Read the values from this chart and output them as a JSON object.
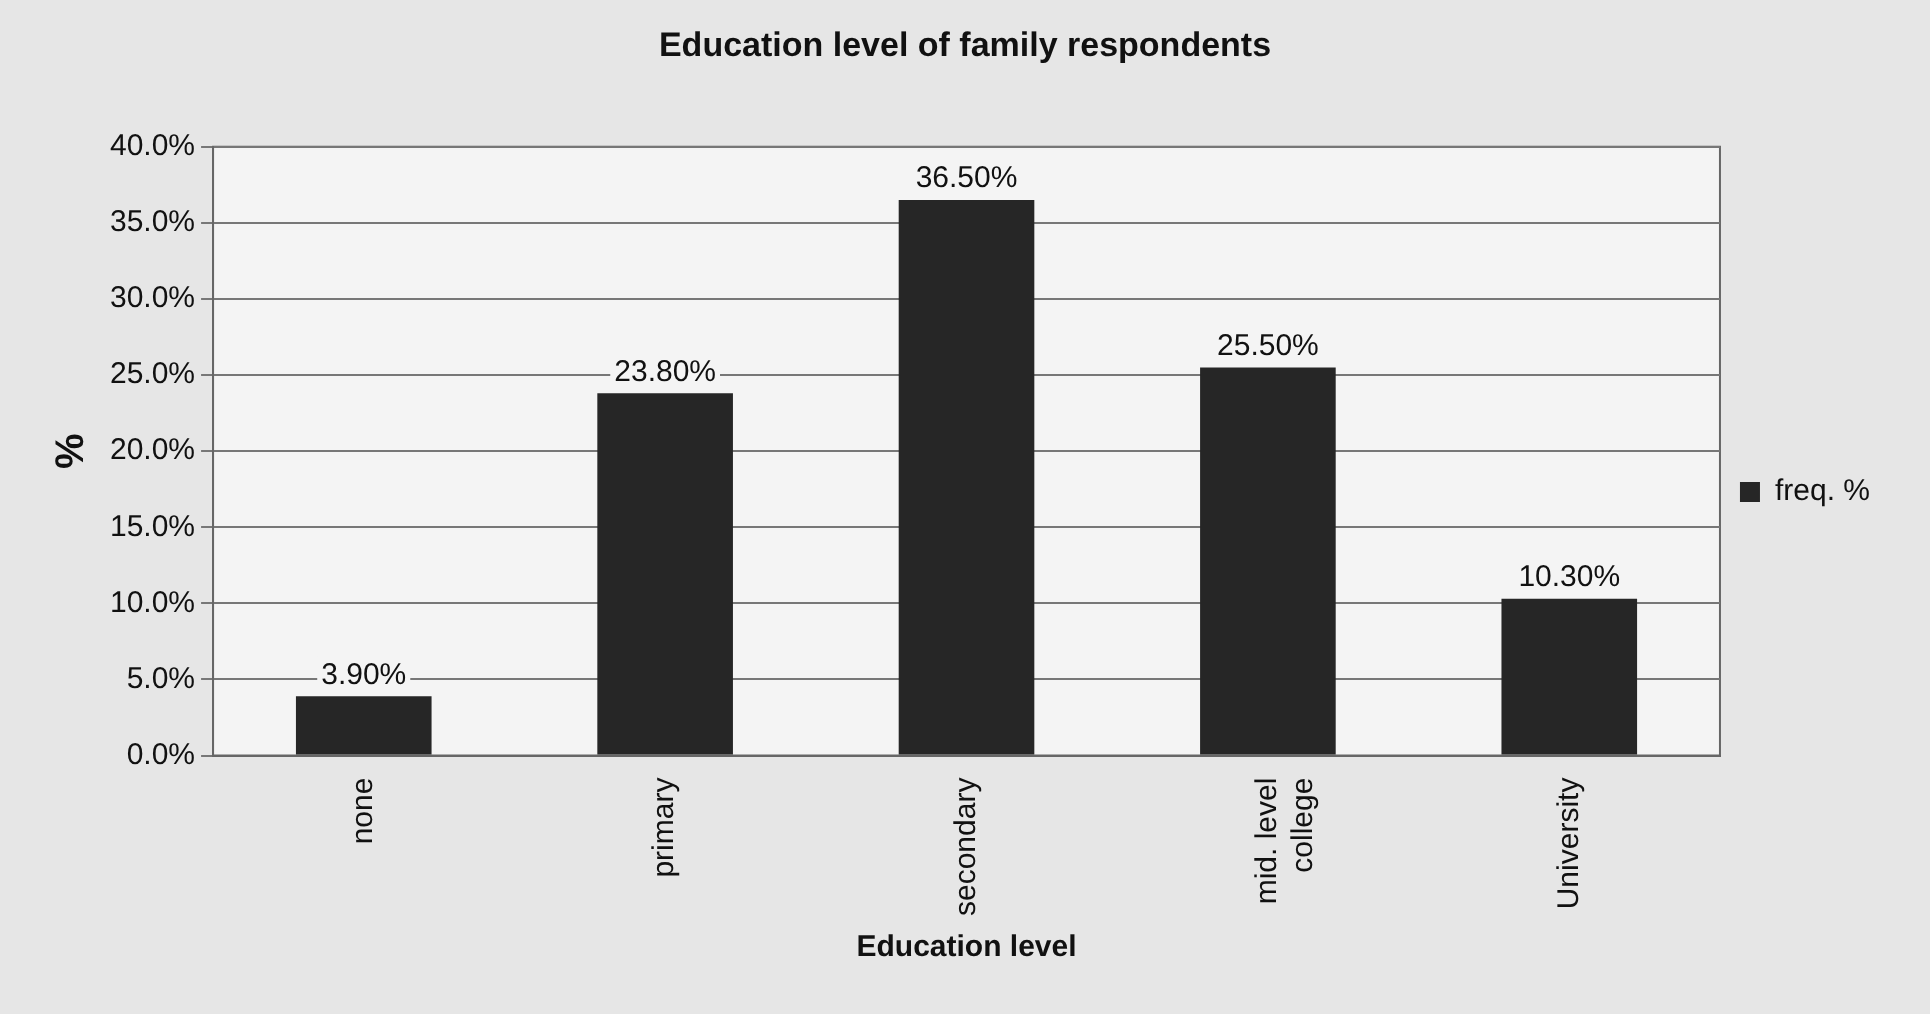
{
  "chart_data": {
    "type": "bar",
    "title": "Education level of family respondents",
    "xlabel": "Education level",
    "ylabel": "%",
    "categories": [
      "none",
      "primary",
      "secondary",
      "mid. level college",
      "University"
    ],
    "series": [
      {
        "name": "freq. %",
        "color": "#262626",
        "values": [
          3.9,
          23.8,
          36.5,
          25.5,
          10.3
        ],
        "value_labels": [
          "3.90%",
          "23.80%",
          "36.50%",
          "25.50%",
          "10.30%"
        ]
      }
    ],
    "ylim": [
      0,
      40
    ],
    "yticks": [
      {
        "value": 0,
        "label": "0.0%"
      },
      {
        "value": 5,
        "label": "5.0%"
      },
      {
        "value": 10,
        "label": "10.0%"
      },
      {
        "value": 15,
        "label": "15.0%"
      },
      {
        "value": 20,
        "label": "20.0%"
      },
      {
        "value": 25,
        "label": "25.0%"
      },
      {
        "value": 30,
        "label": "30.0%"
      },
      {
        "value": 35,
        "label": "35.0%"
      },
      {
        "value": 40,
        "label": "40.0%"
      }
    ],
    "grid": "y",
    "legend": "right"
  }
}
